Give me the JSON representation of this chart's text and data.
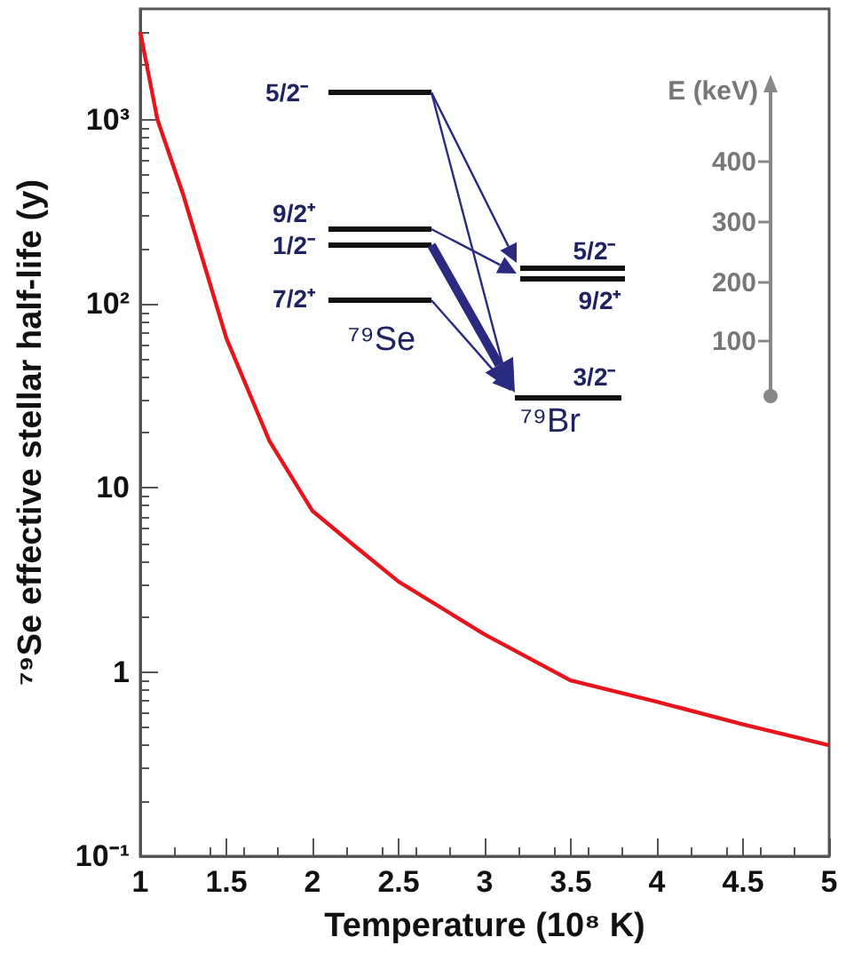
{
  "chart_data": {
    "type": "line",
    "xlabel": "Temperature (10⁸ K)",
    "ylabel": "⁷⁹Se effective stellar half-life (y)",
    "x": [
      1,
      1.1,
      1.25,
      1.5,
      1.75,
      2,
      2.25,
      2.5,
      3,
      3.5,
      4,
      4.5,
      5
    ],
    "series": [
      {
        "color": "#e8141c",
        "values": [
          3000,
          1000,
          390,
          65,
          18,
          7.5,
          4.8,
          3.1,
          1.6,
          0.9,
          0.69,
          0.52,
          0.4
        ]
      }
    ],
    "xlim": [
      1,
      5
    ],
    "xticks": [
      1,
      1.5,
      2,
      2.5,
      3,
      3.5,
      4,
      4.5,
      5
    ],
    "ylim": [
      0.1,
      4000
    ],
    "log": "y",
    "yticks": [
      {
        "value": 0.1,
        "label": "10⁻¹"
      },
      1,
      10,
      {
        "value": 100,
        "label": "10²"
      },
      {
        "value": 1000,
        "label": "10³"
      }
    ],
    "grid": false,
    "marker": "none",
    "line_style": "solid",
    "annotations": [
      "5/2⁻",
      "9/2⁺",
      "1/2⁻",
      "7/2⁺",
      "⁷⁹Se",
      "5/2⁻",
      "9/2⁺",
      "3/2⁻",
      "⁷⁹Br",
      "E (keV)",
      "400",
      "300",
      "200",
      "100"
    ]
  }
}
